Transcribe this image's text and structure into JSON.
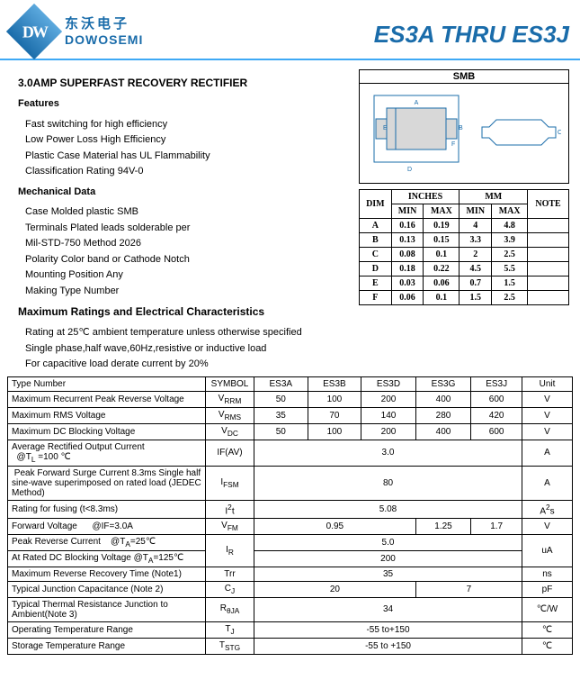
{
  "header": {
    "company_cn": "东沃电子",
    "company_en": "DOWOSEMI",
    "part_title": "ES3A THRU ES3J",
    "logo_colors": {
      "top": "#5ca9de",
      "bottom": "#1a6caa"
    }
  },
  "main": {
    "title": "3.0AMP SUPERFAST RECOVERY RECTIFIER",
    "features_title": "Features",
    "features": [
      "Fast switching for high efficiency",
      "Low Power Loss High Efficiency",
      "Plastic Case Material has UL Flammability",
      "Classification Rating 94V-0"
    ],
    "mech_title": "Mechanical Data",
    "mech": [
      "Case  Molded plastic SMB",
      "Terminals Plated leads solderable per",
      "Mil-STD-750 Method 2026",
      "Polarity Color band or Cathode Notch",
      "Mounting Position Any",
      "Making Type Number"
    ],
    "max_title": "Maximum Ratings and Electrical Characteristics",
    "max_notes": [
      "Rating at 25℃ ambient temperature unless otherwise specified",
      "Single phase,half wave,60Hz,resistive or inductive load",
      "For capacitive load derate current by 20%"
    ]
  },
  "pkg": {
    "label": "SMB",
    "dims_header": {
      "dim": "DIM",
      "in": "INCHES",
      "mm": "MM",
      "note": "NOTE",
      "min": "MIN",
      "max": "MAX"
    },
    "rows": [
      {
        "d": "A",
        "imin": "0.16",
        "imax": "0.19",
        "mmin": "4",
        "mmax": "4.8",
        "n": ""
      },
      {
        "d": "B",
        "imin": "0.13",
        "imax": "0.15",
        "mmin": "3.3",
        "mmax": "3.9",
        "n": ""
      },
      {
        "d": "C",
        "imin": "0.08",
        "imax": "0.1",
        "mmin": "2",
        "mmax": "2.5",
        "n": ""
      },
      {
        "d": "D",
        "imin": "0.18",
        "imax": "0.22",
        "mmin": "4.5",
        "mmax": "5.5",
        "n": ""
      },
      {
        "d": "E",
        "imin": "0.03",
        "imax": "0.06",
        "mmin": "0.7",
        "mmax": "1.5",
        "n": ""
      },
      {
        "d": "F",
        "imin": "0.06",
        "imax": "0.1",
        "mmin": "1.5",
        "mmax": "2.5",
        "n": ""
      }
    ]
  },
  "ratings": {
    "header": [
      "Type Number",
      "SYMBOL",
      "ES3A",
      "ES3B",
      "ES3D",
      "ES3G",
      "ES3J",
      "Unit"
    ],
    "rows": [
      {
        "p": "Maximum Recurrent Peak Reverse Voltage",
        "s": "V<sub>RRM</sub>",
        "v": [
          "50",
          "100",
          "200",
          "400",
          "600"
        ],
        "u": "V"
      },
      {
        "p": "Maximum RMS Voltage",
        "s": "V<sub>RMS</sub>",
        "v": [
          "35",
          "70",
          "140",
          "280",
          "420"
        ],
        "u": "V"
      },
      {
        "p": "Maximum DC Blocking Voltage",
        "s": "V<sub>DC</sub>",
        "v": [
          "50",
          "100",
          "200",
          "400",
          "600"
        ],
        "u": "V"
      },
      {
        "p": "Average Rectified Output Current<br>&nbsp;&nbsp;@T<sub>L</sub> =100 ℃",
        "s": "IF(AV)",
        "span5": "3.0",
        "u": "A"
      },
      {
        "p": "&nbsp;Peak Forward Surge Current 8.3ms Single half sine-wave superimposed on  rated load  (JEDEC Method)",
        "s": "I<sub>FSM</sub>",
        "span5": "80",
        "u": "A"
      },
      {
        "p": "Rating for fusing (t&lt;8.3ms)",
        "s": "I<sup>2</sup>t",
        "span5": "5.08",
        "u": "A<sup>2</sup>s"
      },
      {
        "p": "Forward Voltage&nbsp;&nbsp;&nbsp;&nbsp;&nbsp;&nbsp;@IF=3.0A",
        "s": "V<sub>FM</sub>",
        "v": [
          {
            "t": "0.95",
            "c": 3
          },
          {
            "t": "1.25",
            "c": 1
          },
          {
            "t": "1.7",
            "c": 1
          }
        ],
        "u": "V"
      },
      {
        "p": "Peak Reverse Current&nbsp;&nbsp;&nbsp;&nbsp;@T<sub>A</sub>=25℃",
        "s": "I<sub>R</sub>",
        "rowspan": 2,
        "span5": "5.0",
        "u": "uA",
        "urowspan": 2
      },
      {
        "p": "At Rated DC Blocking Voltage @T<sub>A</sub>=125℃",
        "span5": "200"
      },
      {
        "p": "Maximum Reverse Recovery Time  (Note1)",
        "s": "Trr",
        "span5": "35",
        "u": "ns"
      },
      {
        "p": "Typical Junction Capacitance (Note 2)",
        "s": "C<sub>J</sub>",
        "v": [
          {
            "t": "20",
            "c": 3
          },
          {
            "t": "7",
            "c": 2
          }
        ],
        "u": "pF"
      },
      {
        "p": "Typical Thermal Resistance Junction to Ambient(Note 3)",
        "s": "R<sub>θJA</sub>",
        "span5": "34",
        "u": "℃/W"
      },
      {
        "p": "Operating Temperature Range",
        "s": "T<sub>J</sub>",
        "span5": "-55 to+150",
        "u": "℃"
      },
      {
        "p": "Storage Temperature Range",
        "s": "T<sub>STG</sub>",
        "span5": "-55 to +150",
        "u": "℃"
      }
    ]
  }
}
